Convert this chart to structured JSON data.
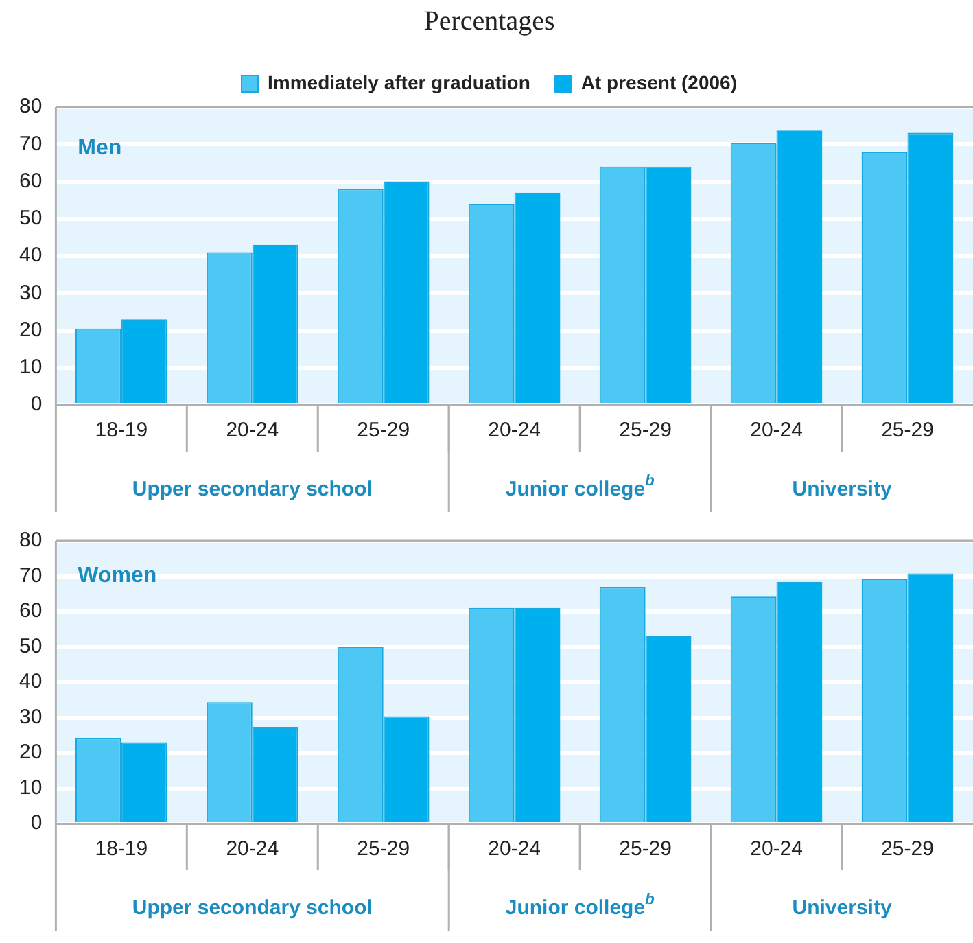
{
  "chart_data": [
    {
      "type": "bar",
      "title": "Percentages",
      "subtitle": "Men",
      "categories": [
        "18-19",
        "20-24",
        "25-29",
        "20-24",
        "25-29",
        "20-24",
        "25-29"
      ],
      "series": [
        {
          "name": "Immediately after graduation",
          "color": "#4dc8f4",
          "values": [
            20.5,
            41,
            58,
            54,
            64,
            70.4,
            68
          ]
        },
        {
          "name": "At present (2006)",
          "color": "#00b0ee",
          "values": [
            23,
            43,
            60,
            57,
            64,
            73.7,
            73.1
          ]
        }
      ],
      "ylim": [
        0,
        80
      ],
      "yticks": [
        0,
        10,
        20,
        30,
        40,
        50,
        60,
        70,
        80
      ],
      "grid": "y",
      "legend": "top",
      "annotations": [
        "Upper secondary school",
        "Junior college$^{b}$",
        "University"
      ]
    },
    {
      "type": "bar",
      "subtitle": "Women",
      "categories": [
        "18-19",
        "20-24",
        "25-29",
        "20-24",
        "25-29",
        "20-24",
        "25-29"
      ],
      "series": [
        {
          "color": "#4dc8f4",
          "values": [
            24.2,
            34.3,
            50.1,
            61,
            66.9,
            64.2,
            69.3
          ]
        },
        {
          "color": "#00b0ee",
          "values": [
            23,
            27.2,
            30.4,
            61,
            53.2,
            68.4,
            70.8
          ]
        }
      ],
      "ylim": [
        0,
        80
      ],
      "yticks": [
        0,
        10,
        20,
        30,
        40,
        50,
        60,
        70,
        80
      ],
      "grid": "y",
      "legend": false,
      "annotations": [
        "Upper secondary school",
        "Junior college$^{b}$",
        "University"
      ]
    }
  ]
}
